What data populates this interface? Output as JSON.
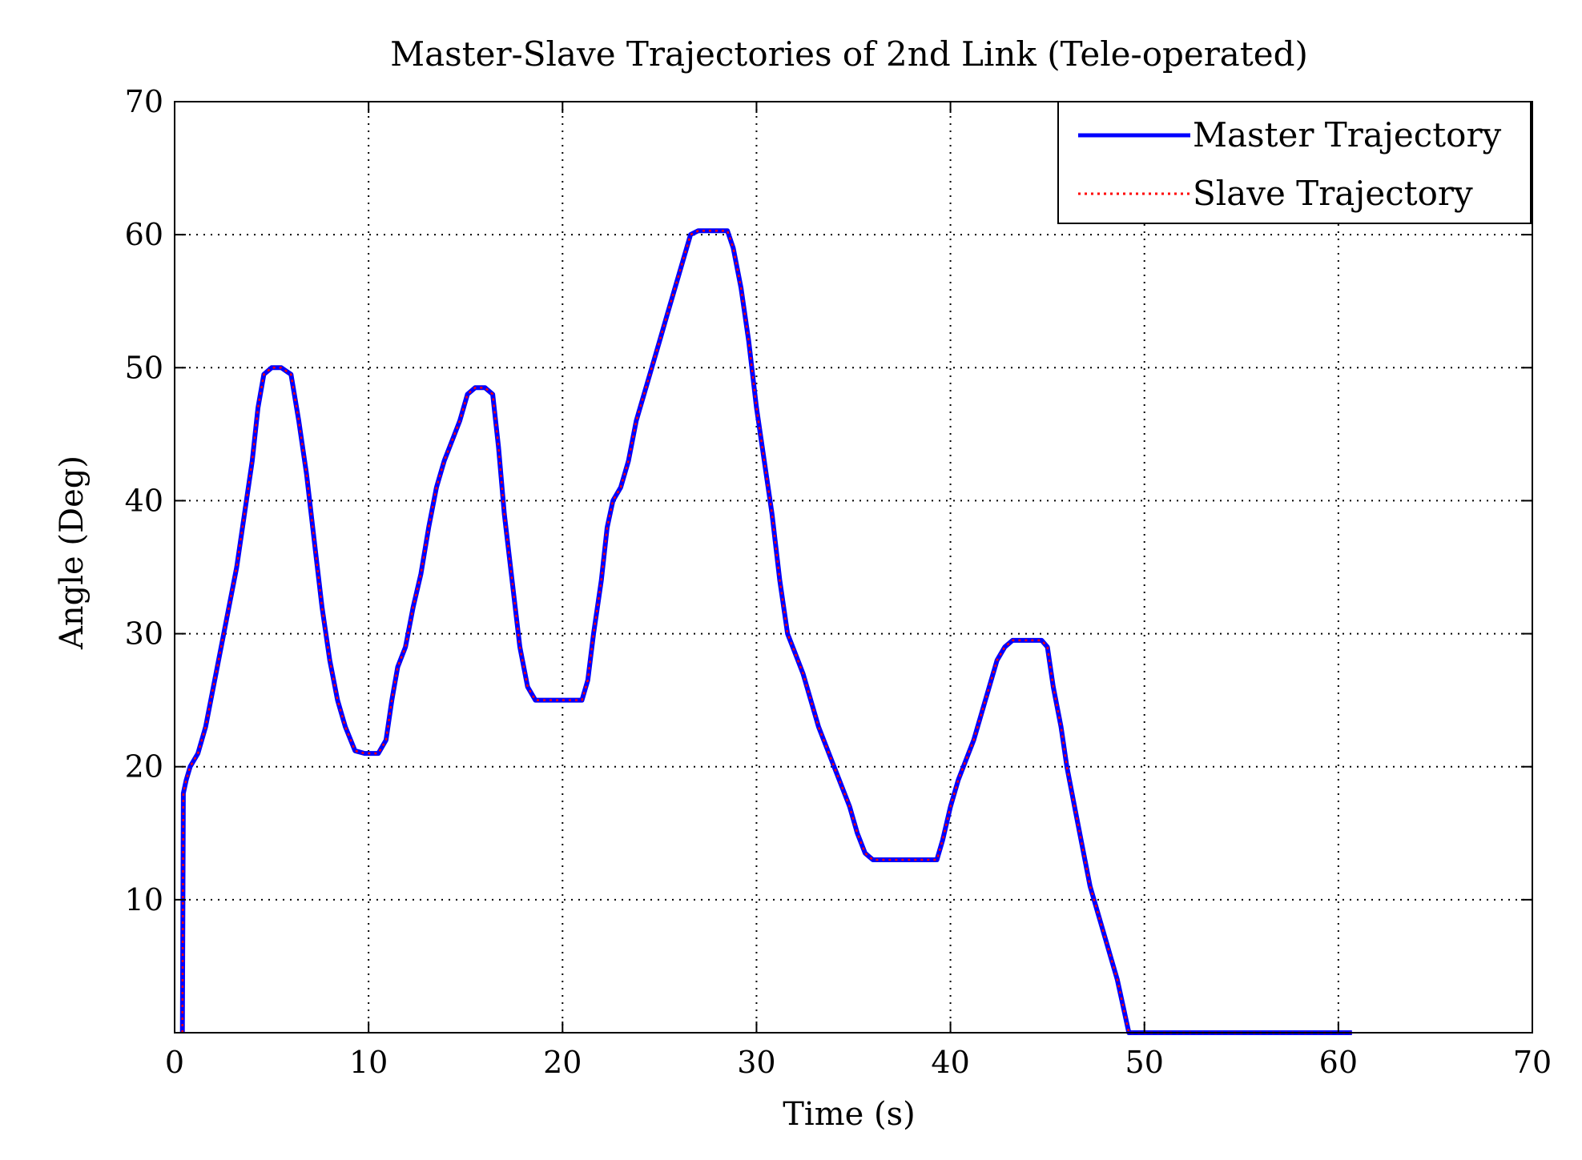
{
  "chart_data": {
    "type": "line",
    "title": "Master-Slave Trajectories of 2nd Link (Tele-operated)",
    "xlabel": "Time (s)",
    "ylabel": "Angle (Deg)",
    "xlim": [
      0,
      70
    ],
    "ylim": [
      0,
      70
    ],
    "xticks": [
      0,
      10,
      20,
      30,
      40,
      50,
      60,
      70
    ],
    "yticks": [
      10,
      20,
      30,
      40,
      50,
      60,
      70
    ],
    "grid": true,
    "legend_position": "top-right",
    "series": [
      {
        "name": "Master Trajectory",
        "style": "solid",
        "color": "#0000ff",
        "points": [
          [
            0.4,
            0
          ],
          [
            0.45,
            18
          ],
          [
            0.6,
            19
          ],
          [
            0.8,
            20
          ],
          [
            1.2,
            21
          ],
          [
            1.6,
            23
          ],
          [
            2.0,
            26
          ],
          [
            2.4,
            29
          ],
          [
            2.8,
            32
          ],
          [
            3.2,
            35
          ],
          [
            3.6,
            39
          ],
          [
            4.0,
            43
          ],
          [
            4.3,
            47
          ],
          [
            4.6,
            49.5
          ],
          [
            5.0,
            50
          ],
          [
            5.5,
            50
          ],
          [
            6.0,
            49.5
          ],
          [
            6.4,
            46
          ],
          [
            6.8,
            42
          ],
          [
            7.2,
            37
          ],
          [
            7.6,
            32
          ],
          [
            8.0,
            28
          ],
          [
            8.4,
            25
          ],
          [
            8.8,
            23
          ],
          [
            9.3,
            21.2
          ],
          [
            9.8,
            21
          ],
          [
            10.5,
            21
          ],
          [
            10.9,
            22
          ],
          [
            11.2,
            25
          ],
          [
            11.5,
            27.5
          ],
          [
            11.9,
            29
          ],
          [
            12.3,
            32
          ],
          [
            12.7,
            34.5
          ],
          [
            13.1,
            38
          ],
          [
            13.5,
            41
          ],
          [
            13.9,
            43
          ],
          [
            14.3,
            44.5
          ],
          [
            14.7,
            46
          ],
          [
            15.1,
            48
          ],
          [
            15.5,
            48.5
          ],
          [
            16.0,
            48.5
          ],
          [
            16.4,
            48
          ],
          [
            16.7,
            44
          ],
          [
            17.0,
            39
          ],
          [
            17.4,
            34
          ],
          [
            17.8,
            29
          ],
          [
            18.2,
            26
          ],
          [
            18.6,
            25
          ],
          [
            20.0,
            25
          ],
          [
            21.0,
            25
          ],
          [
            21.3,
            26.5
          ],
          [
            21.6,
            30
          ],
          [
            22.0,
            34
          ],
          [
            22.3,
            38
          ],
          [
            22.6,
            40
          ],
          [
            23.0,
            41
          ],
          [
            23.4,
            43
          ],
          [
            23.8,
            46
          ],
          [
            24.2,
            48
          ],
          [
            24.6,
            50
          ],
          [
            25.0,
            52
          ],
          [
            25.4,
            54
          ],
          [
            25.8,
            56
          ],
          [
            26.2,
            58
          ],
          [
            26.6,
            60
          ],
          [
            27.0,
            60.3
          ],
          [
            27.5,
            60.3
          ],
          [
            28.0,
            60.3
          ],
          [
            28.5,
            60.3
          ],
          [
            28.8,
            59
          ],
          [
            29.2,
            56
          ],
          [
            29.6,
            52
          ],
          [
            30.0,
            47
          ],
          [
            30.4,
            43
          ],
          [
            30.8,
            39
          ],
          [
            31.2,
            34
          ],
          [
            31.6,
            30
          ],
          [
            32.0,
            28.5
          ],
          [
            32.4,
            27
          ],
          [
            32.8,
            25
          ],
          [
            33.2,
            23
          ],
          [
            33.6,
            21.5
          ],
          [
            34.0,
            20
          ],
          [
            34.4,
            18.5
          ],
          [
            34.8,
            17
          ],
          [
            35.2,
            15
          ],
          [
            35.6,
            13.5
          ],
          [
            36.0,
            13
          ],
          [
            37.0,
            13
          ],
          [
            38.0,
            13
          ],
          [
            39.3,
            13
          ],
          [
            39.6,
            14.5
          ],
          [
            40.0,
            17
          ],
          [
            40.4,
            19
          ],
          [
            40.8,
            20.5
          ],
          [
            41.2,
            22
          ],
          [
            41.6,
            24
          ],
          [
            42.0,
            26
          ],
          [
            42.4,
            28
          ],
          [
            42.8,
            29
          ],
          [
            43.2,
            29.5
          ],
          [
            44.0,
            29.5
          ],
          [
            44.7,
            29.5
          ],
          [
            45.0,
            29
          ],
          [
            45.3,
            26
          ],
          [
            45.7,
            23
          ],
          [
            46.0,
            20
          ],
          [
            46.4,
            17
          ],
          [
            46.8,
            14
          ],
          [
            47.2,
            11
          ],
          [
            47.6,
            9
          ],
          [
            48.0,
            7
          ],
          [
            48.3,
            5.5
          ],
          [
            48.6,
            4
          ],
          [
            48.9,
            2
          ],
          [
            49.2,
            0
          ],
          [
            50.0,
            0
          ],
          [
            55.0,
            0
          ],
          [
            60.7,
            0
          ]
        ]
      },
      {
        "name": "Slave Trajectory",
        "style": "dotted",
        "color": "#ff0000",
        "points": [
          [
            0.4,
            0
          ],
          [
            0.45,
            18
          ],
          [
            0.6,
            19
          ],
          [
            0.8,
            20
          ],
          [
            1.2,
            21
          ],
          [
            1.6,
            23
          ],
          [
            2.0,
            26
          ],
          [
            2.4,
            29
          ],
          [
            2.8,
            32
          ],
          [
            3.2,
            35
          ],
          [
            3.6,
            39
          ],
          [
            4.0,
            43
          ],
          [
            4.3,
            47
          ],
          [
            4.6,
            49.5
          ],
          [
            5.0,
            50
          ],
          [
            5.5,
            50
          ],
          [
            6.0,
            49.5
          ],
          [
            6.4,
            46
          ],
          [
            6.8,
            42
          ],
          [
            7.2,
            37
          ],
          [
            7.6,
            32
          ],
          [
            8.0,
            28
          ],
          [
            8.4,
            25
          ],
          [
            8.8,
            23
          ],
          [
            9.3,
            21.2
          ],
          [
            9.8,
            21
          ],
          [
            10.5,
            21
          ],
          [
            10.9,
            22
          ],
          [
            11.2,
            25
          ],
          [
            11.5,
            27.5
          ],
          [
            11.9,
            29
          ],
          [
            12.3,
            32
          ],
          [
            12.7,
            34.5
          ],
          [
            13.1,
            38
          ],
          [
            13.5,
            41
          ],
          [
            13.9,
            43
          ],
          [
            14.3,
            44.5
          ],
          [
            14.7,
            46
          ],
          [
            15.1,
            48
          ],
          [
            15.5,
            48.5
          ],
          [
            16.0,
            48.5
          ],
          [
            16.4,
            48
          ],
          [
            16.7,
            44
          ],
          [
            17.0,
            39
          ],
          [
            17.4,
            34
          ],
          [
            17.8,
            29
          ],
          [
            18.2,
            26
          ],
          [
            18.6,
            25
          ],
          [
            20.0,
            25
          ],
          [
            21.0,
            25
          ],
          [
            21.3,
            26.5
          ],
          [
            21.6,
            30
          ],
          [
            22.0,
            34
          ],
          [
            22.3,
            38
          ],
          [
            22.6,
            40
          ],
          [
            23.0,
            41
          ],
          [
            23.4,
            43
          ],
          [
            23.8,
            46
          ],
          [
            24.2,
            48
          ],
          [
            24.6,
            50
          ],
          [
            25.0,
            52
          ],
          [
            25.4,
            54
          ],
          [
            25.8,
            56
          ],
          [
            26.2,
            58
          ],
          [
            26.6,
            60
          ],
          [
            27.0,
            60.3
          ],
          [
            27.5,
            60.3
          ],
          [
            28.0,
            60.3
          ],
          [
            28.5,
            60.3
          ],
          [
            28.8,
            59
          ],
          [
            29.2,
            56
          ],
          [
            29.6,
            52
          ],
          [
            30.0,
            47
          ],
          [
            30.4,
            43
          ],
          [
            30.8,
            39
          ],
          [
            31.2,
            34
          ],
          [
            31.6,
            30
          ],
          [
            32.0,
            28.5
          ],
          [
            32.4,
            27
          ],
          [
            32.8,
            25
          ],
          [
            33.2,
            23
          ],
          [
            33.6,
            21.5
          ],
          [
            34.0,
            20
          ],
          [
            34.4,
            18.5
          ],
          [
            34.8,
            17
          ],
          [
            35.2,
            15
          ],
          [
            35.6,
            13.5
          ],
          [
            36.0,
            13
          ],
          [
            37.0,
            13
          ],
          [
            38.0,
            13
          ],
          [
            39.3,
            13
          ],
          [
            39.6,
            14.5
          ],
          [
            40.0,
            17
          ],
          [
            40.4,
            19
          ],
          [
            40.8,
            20.5
          ],
          [
            41.2,
            22
          ],
          [
            41.6,
            24
          ],
          [
            42.0,
            26
          ],
          [
            42.4,
            28
          ],
          [
            42.8,
            29
          ],
          [
            43.2,
            29.5
          ],
          [
            44.0,
            29.5
          ],
          [
            44.7,
            29.5
          ],
          [
            45.0,
            29
          ],
          [
            45.3,
            26
          ],
          [
            45.7,
            23
          ],
          [
            46.0,
            20
          ],
          [
            46.4,
            17
          ],
          [
            46.8,
            14
          ],
          [
            47.2,
            11
          ],
          [
            47.6,
            9
          ],
          [
            48.0,
            7
          ],
          [
            48.3,
            5.5
          ],
          [
            48.6,
            4
          ],
          [
            48.9,
            2
          ],
          [
            49.2,
            0
          ],
          [
            50.0,
            0
          ],
          [
            55.0,
            0
          ],
          [
            60.7,
            0
          ]
        ]
      }
    ]
  }
}
